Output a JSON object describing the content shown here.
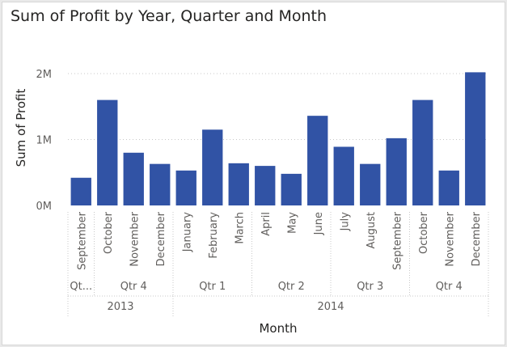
{
  "chart_data": {
    "type": "bar",
    "title": "Sum of Profit by Year, Quarter and Month",
    "xlabel": "Month",
    "ylabel": "Sum of Profit",
    "ylim": [
      0,
      2000000
    ],
    "yticks": [
      {
        "value": 0,
        "label": "0M"
      },
      {
        "value": 1000000,
        "label": "1M"
      },
      {
        "value": 2000000,
        "label": "2M"
      }
    ],
    "grid": true,
    "bar_color": "#3153a5",
    "categories": [
      "September",
      "October",
      "November",
      "December",
      "January",
      "February",
      "March",
      "April",
      "May",
      "June",
      "July",
      "August",
      "September",
      "October",
      "November",
      "December"
    ],
    "values": [
      420000,
      1600000,
      800000,
      630000,
      530000,
      1150000,
      640000,
      600000,
      480000,
      1360000,
      890000,
      630000,
      1020000,
      1600000,
      530000,
      2020000
    ],
    "quarters": [
      {
        "label": "Qt...",
        "start": 0,
        "span": 1
      },
      {
        "label": "Qtr 4",
        "start": 1,
        "span": 3
      },
      {
        "label": "Qtr 1",
        "start": 4,
        "span": 3
      },
      {
        "label": "Qtr 2",
        "start": 7,
        "span": 3
      },
      {
        "label": "Qtr 3",
        "start": 10,
        "span": 3
      },
      {
        "label": "Qtr 4",
        "start": 13,
        "span": 3
      }
    ],
    "years": [
      {
        "label": "2013",
        "start": 0,
        "span": 4
      },
      {
        "label": "2014",
        "start": 4,
        "span": 12
      }
    ]
  }
}
